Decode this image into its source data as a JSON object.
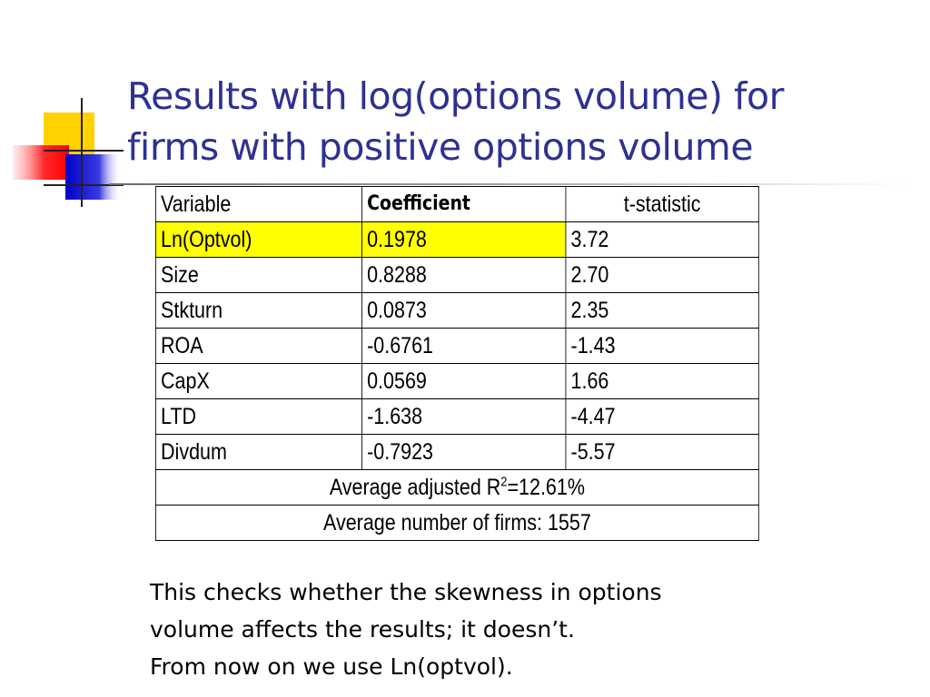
{
  "slide": {
    "title_line1": "Results with log(options volume) for",
    "title_line2": "firms with positive options volume"
  },
  "table": {
    "headers": [
      "Variable",
      "Coefficient",
      "t-statistic"
    ],
    "rows": [
      [
        "Ln(Optvol)",
        "0.1978",
        "3.72"
      ],
      [
        "Size",
        "0.8288",
        "2.70"
      ],
      [
        "Stkturn",
        "0.0873",
        "2.35"
      ],
      [
        "ROA",
        "-0.6761",
        "-1.43"
      ],
      [
        "CapX",
        "0.0569",
        "1.66"
      ],
      [
        "LTD",
        "-1.638",
        "-4.47"
      ],
      [
        "Divdum",
        "-0.7923",
        "-5.57"
      ]
    ],
    "highlighted_row": 0,
    "highlight_color": "#ffff00",
    "footer_r2_prefix": "Average adjusted R",
    "footer_r2_sup": "2",
    "footer_r2_suffix": "=12.61%",
    "footer_firms": "Average number of firms: 1557"
  },
  "note": {
    "line1": "This checks whether the skewness in options",
    "line2": "volume affects the results; it doesn’t.",
    "line3": "From now on we use Ln(optvol)."
  },
  "colors": {
    "title": "#2e3192",
    "logo_yellow": "#ffd200",
    "logo_red": "#ff2020",
    "logo_blue": "#1a1ad0"
  }
}
